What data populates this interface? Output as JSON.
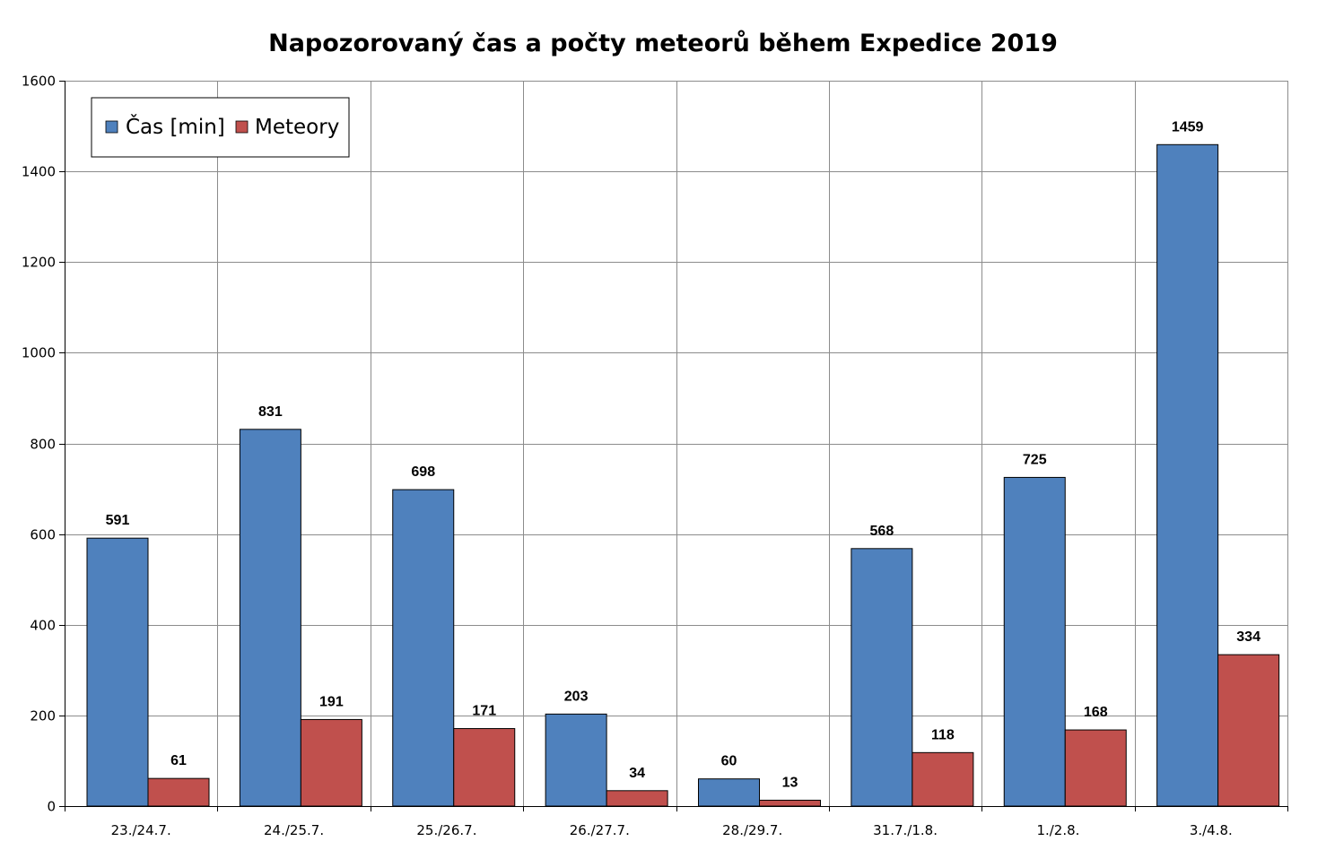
{
  "chart_data": {
    "type": "bar",
    "title": "Napozorovaný čas a počty meteorů během Expedice 2019",
    "xlabel": "",
    "ylabel": "",
    "categories": [
      "23./24.7.",
      "24./25.7.",
      "25./26.7.",
      "26./27.7.",
      "28./29.7.",
      "31.7./1.8.",
      "1./2.8.",
      "3./4.8."
    ],
    "series": [
      {
        "name": "Čas [min]",
        "color": "#4f81bd",
        "values": [
          591,
          831,
          698,
          203,
          60,
          568,
          725,
          1459
        ]
      },
      {
        "name": "Meteory",
        "color": "#c0504d",
        "values": [
          61,
          191,
          171,
          34,
          13,
          118,
          168,
          334
        ]
      }
    ],
    "ylim": [
      0,
      1600
    ],
    "yticks": [
      0,
      200,
      400,
      600,
      800,
      1000,
      1200,
      1400,
      1600
    ],
    "grid": true,
    "legend_position": "top-left",
    "data_labels": true
  }
}
